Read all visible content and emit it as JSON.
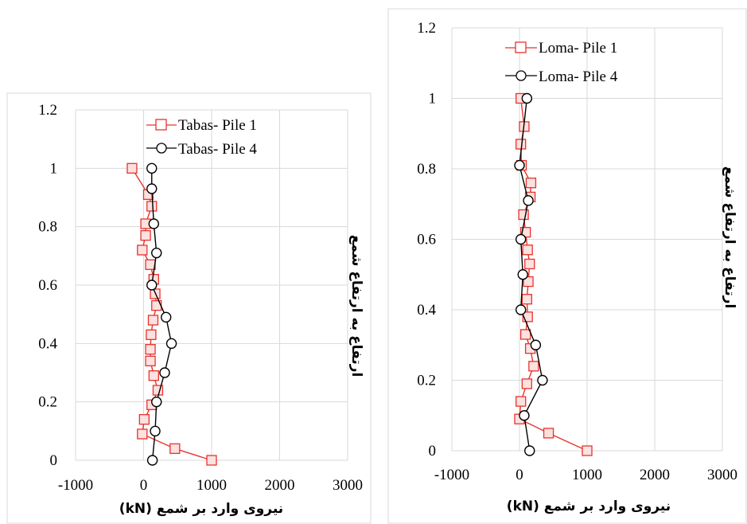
{
  "chart_data": [
    {
      "type": "line",
      "xlabel": "نیروی وارد بر شمع (kN)",
      "ylabel": "ارتفاع به ارتفاع شمع",
      "xlim": [
        -1000,
        3000
      ],
      "ylim": [
        0,
        1.2
      ],
      "xticks": [
        "-1000",
        "0",
        "1000",
        "2000",
        "3000"
      ],
      "yticks": [
        "0",
        "0.2",
        "0.4",
        "0.6",
        "0.8",
        "1",
        "1.2"
      ],
      "grid": true,
      "legend_position": "top",
      "series": [
        {
          "name": "Tabas- Pile 1",
          "color": "#e8322d",
          "marker": "square",
          "points": [
            [
              -170,
              1.0
            ],
            [
              70,
              0.91
            ],
            [
              120,
              0.87
            ],
            [
              30,
              0.81
            ],
            [
              30,
              0.77
            ],
            [
              -20,
              0.72
            ],
            [
              100,
              0.67
            ],
            [
              150,
              0.62
            ],
            [
              170,
              0.57
            ],
            [
              190,
              0.53
            ],
            [
              140,
              0.48
            ],
            [
              110,
              0.43
            ],
            [
              100,
              0.38
            ],
            [
              100,
              0.34
            ],
            [
              150,
              0.29
            ],
            [
              210,
              0.24
            ],
            [
              120,
              0.19
            ],
            [
              10,
              0.14
            ],
            [
              -20,
              0.09
            ],
            [
              460,
              0.04
            ],
            [
              1000,
              0.0
            ]
          ]
        },
        {
          "name": "Tabas- Pile 4",
          "color": "#000000",
          "marker": "circle",
          "points": [
            [
              120,
              1.0
            ],
            [
              120,
              0.93
            ],
            [
              150,
              0.81
            ],
            [
              190,
              0.71
            ],
            [
              120,
              0.6
            ],
            [
              330,
              0.49
            ],
            [
              410,
              0.4
            ],
            [
              310,
              0.3
            ],
            [
              190,
              0.2
            ],
            [
              170,
              0.1
            ],
            [
              130,
              0.0
            ]
          ]
        }
      ]
    },
    {
      "type": "line",
      "xlabel": "نیروی وارد بر شمع (kN)",
      "ylabel": "ارتفاع به ارتفاع شمع",
      "xlim": [
        -1000,
        3000
      ],
      "ylim": [
        0,
        1.2
      ],
      "xticks": [
        "-1000",
        "0",
        "1000",
        "2000",
        "3000"
      ],
      "yticks": [
        "0",
        "0.2",
        "0.4",
        "0.6",
        "0.8",
        "1",
        "1.2"
      ],
      "grid": true,
      "legend_position": "top",
      "series": [
        {
          "name": "Loma- Pile 1",
          "color": "#e8322d",
          "marker": "square",
          "points": [
            [
              20,
              1.0
            ],
            [
              70,
              0.92
            ],
            [
              20,
              0.87
            ],
            [
              30,
              0.81
            ],
            [
              170,
              0.76
            ],
            [
              160,
              0.72
            ],
            [
              60,
              0.67
            ],
            [
              90,
              0.62
            ],
            [
              120,
              0.57
            ],
            [
              150,
              0.53
            ],
            [
              130,
              0.48
            ],
            [
              110,
              0.43
            ],
            [
              120,
              0.38
            ],
            [
              90,
              0.33
            ],
            [
              160,
              0.29
            ],
            [
              210,
              0.24
            ],
            [
              110,
              0.19
            ],
            [
              20,
              0.14
            ],
            [
              0,
              0.09
            ],
            [
              430,
              0.05
            ],
            [
              1000,
              0.0
            ]
          ]
        },
        {
          "name": "Loma- Pile 4",
          "color": "#000000",
          "marker": "circle",
          "points": [
            [
              110,
              1.0
            ],
            [
              0,
              0.81
            ],
            [
              130,
              0.71
            ],
            [
              20,
              0.6
            ],
            [
              50,
              0.5
            ],
            [
              20,
              0.4
            ],
            [
              240,
              0.3
            ],
            [
              340,
              0.2
            ],
            [
              70,
              0.1
            ],
            [
              150,
              0.0
            ]
          ]
        }
      ]
    }
  ]
}
